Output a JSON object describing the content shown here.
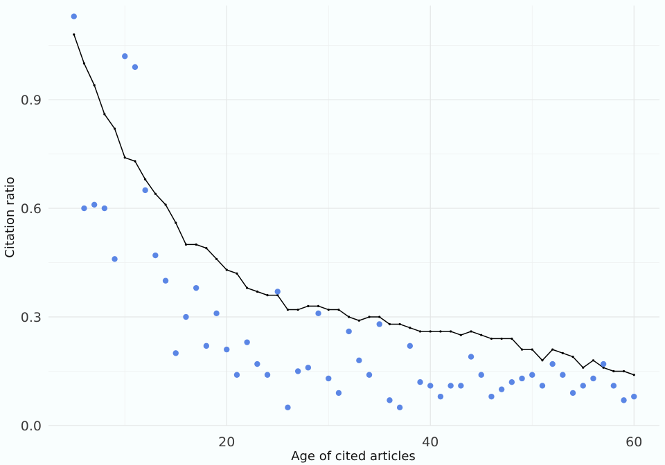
{
  "chart_data": {
    "type": "scatter",
    "title": "",
    "xlabel": "Age of cited articles",
    "ylabel": "Citation ratio",
    "xlim": [
      2.5,
      62.5
    ],
    "ylim": [
      0.0,
      1.16
    ],
    "x_ticks": [
      20,
      40,
      60
    ],
    "x_tick_labels": [
      "20",
      "40",
      "60"
    ],
    "y_ticks": [
      0.0,
      0.3,
      0.6,
      0.9
    ],
    "y_tick_labels": [
      "0.0",
      "0.3",
      "0.6",
      "0.9"
    ],
    "grid": true,
    "legend": "none",
    "colors": {
      "points": "#5b86e5",
      "line": "#000000"
    },
    "series": [
      {
        "kind": "points",
        "x": [
          5,
          6,
          7,
          8,
          9,
          10,
          11,
          12,
          13,
          14,
          15,
          16,
          17,
          18,
          19,
          20,
          21,
          22,
          23,
          24,
          25,
          26,
          27,
          28,
          29,
          30,
          31,
          32,
          33,
          34,
          35,
          36,
          37,
          38,
          39,
          40,
          41,
          42,
          43,
          44,
          45,
          46,
          47,
          48,
          49,
          50,
          51,
          52,
          53,
          54,
          55,
          56,
          57,
          58,
          59,
          60
        ],
        "y": [
          1.13,
          0.6,
          0.61,
          0.6,
          0.46,
          1.02,
          0.99,
          0.65,
          0.47,
          0.4,
          0.2,
          0.3,
          0.38,
          0.22,
          0.31,
          0.21,
          0.14,
          0.23,
          0.17,
          0.14,
          0.37,
          0.05,
          0.15,
          0.16,
          0.31,
          0.13,
          0.09,
          0.26,
          0.18,
          0.14,
          0.28,
          0.07,
          0.05,
          0.22,
          0.12,
          0.11,
          0.08,
          0.11,
          0.11,
          0.19,
          0.14,
          0.08,
          0.1,
          0.12,
          0.13,
          0.14,
          0.11,
          0.17,
          0.14,
          0.09,
          0.11,
          0.13,
          0.17,
          0.11,
          0.07,
          0.08
        ]
      },
      {
        "kind": "line",
        "x": [
          5,
          6,
          7,
          8,
          9,
          10,
          11,
          12,
          13,
          14,
          15,
          16,
          17,
          18,
          19,
          20,
          21,
          22,
          23,
          24,
          25,
          26,
          27,
          28,
          29,
          30,
          31,
          32,
          33,
          34,
          35,
          36,
          37,
          38,
          39,
          40,
          41,
          42,
          43,
          44,
          45,
          46,
          47,
          48,
          49,
          50,
          51,
          52,
          53,
          54,
          55,
          56,
          57,
          58,
          59,
          60
        ],
        "y": [
          1.08,
          1.0,
          0.94,
          0.86,
          0.82,
          0.74,
          0.73,
          0.68,
          0.64,
          0.61,
          0.56,
          0.5,
          0.5,
          0.49,
          0.46,
          0.43,
          0.42,
          0.38,
          0.37,
          0.36,
          0.36,
          0.32,
          0.32,
          0.33,
          0.33,
          0.32,
          0.32,
          0.3,
          0.29,
          0.3,
          0.3,
          0.28,
          0.28,
          0.27,
          0.26,
          0.26,
          0.26,
          0.26,
          0.25,
          0.26,
          0.25,
          0.24,
          0.24,
          0.24,
          0.21,
          0.21,
          0.18,
          0.21,
          0.2,
          0.19,
          0.16,
          0.18,
          0.16,
          0.15,
          0.15,
          0.14
        ]
      }
    ]
  }
}
